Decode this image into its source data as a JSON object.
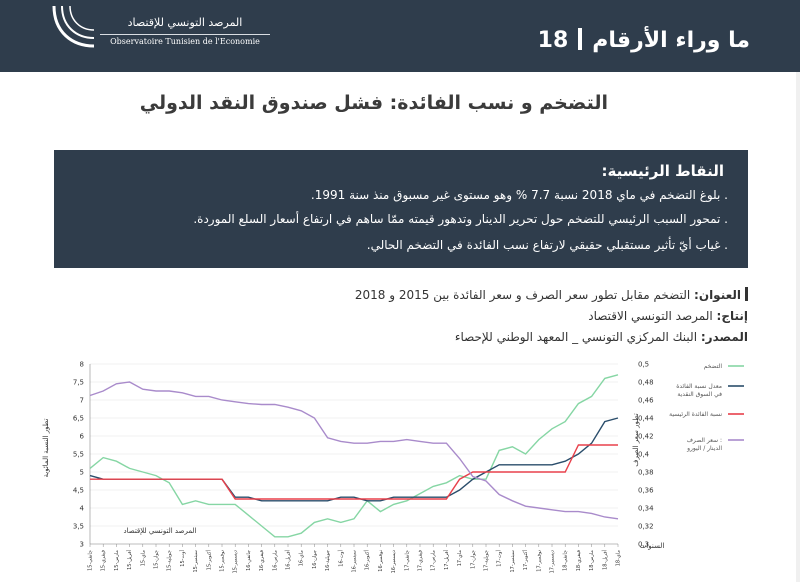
{
  "header": {
    "logo_ar": "المرصد التونسي للإقتصاد",
    "logo_fr": "Observatoire Tunisien de l'Economie",
    "title": "ما وراء الأرقام",
    "number": "18"
  },
  "main_title": "التضخم و نسب الفائدة: فشل صندوق النقد الدولي",
  "key_points": {
    "title": "النقاط الرئيسية:",
    "items": [
      ". بلوغ التضخم في ماي 2018 نسبة 7.7 % وهو مستوى غير مسبوق منذ سنة 1991.",
      ". تمحور السبب الرئيسي للتضخم حول تحرير الدينار وتدهور قيمته ممّا ساهم في ارتفاع أسعار السلع الموردة.",
      ". غياب أيّ تأثير مستقبلي حقيقي لارتفاع نسب الفائدة في التضخم الحالي."
    ]
  },
  "meta": {
    "title_label": "العنوان:",
    "title_value": "التضخم مقابل تطور سعر الصرف و سعر الفائدة بين 2015 و 2018",
    "production_label": "إنتاج:",
    "production_value": "المرصد التونسي الاقتصاد",
    "source_label": "المصدر:",
    "source_value": "البنك المركزي التونسي _ المعهد الوطني للإحصاء"
  },
  "colors": {
    "header_bg": "#2f3d4c",
    "inflation": "#86d6a4",
    "money_market_rate": "#2a4d6b",
    "key_rate": "#e8404b",
    "exchange_rate": "#a98bcb"
  },
  "chart_data": {
    "type": "line",
    "ylabel": "تطور النسبة المائوية",
    "ylabel_right": "تطور سعر الصرف",
    "xlabel": "السنوات",
    "watermark": "المرصد التونسي للإقتصاد",
    "ylim": [
      3,
      8
    ],
    "yticks": [
      "3",
      "3,5",
      "4",
      "4,5",
      "5",
      "5,5",
      "6",
      "6,5",
      "7",
      "7,5",
      "8"
    ],
    "y2lim": [
      0.3,
      0.5
    ],
    "y2ticks": [
      "0,3",
      "0,32",
      "0,34",
      "0,36",
      "0,38",
      "0,4",
      "0,42",
      "0,44",
      "0,46",
      "0,48",
      "0,5"
    ],
    "x": [
      "جانفي-15",
      "فيفري-15",
      "مارس-15",
      "أفريل-15",
      "ماي-15",
      "جوان-15",
      "جويلية-15",
      "أوت-15",
      "سبتمبر-15",
      "أكتوبر-15",
      "نوفمبر-15",
      "ديسمبر-15",
      "جانفي-16",
      "فيفري-16",
      "مارس-16",
      "أفريل-16",
      "ماي-16",
      "جوان-16",
      "جويلية-16",
      "أوت-16",
      "سبتمبر-16",
      "أكتوبر-16",
      "نوفمبر-16",
      "ديسمبر-16",
      "جانفي-17",
      "فيفري-17",
      "مارس-17",
      "أفريل-17",
      "ماي-17",
      "جوان-17",
      "جويلية-17",
      "أوت-17",
      "سبتمبر-17",
      "أكتوبر-17",
      "نوفمبر-17",
      "ديسمبر-17",
      "جانفي-18",
      "فيفري-18",
      "مارس-18",
      "أفريل-18",
      "ماي-18"
    ],
    "series": [
      {
        "name": "التضخم",
        "axis": "left",
        "color": "#86d6a4",
        "values": [
          5.1,
          5.4,
          5.3,
          5.1,
          5.0,
          4.9,
          4.7,
          4.1,
          4.2,
          4.1,
          4.1,
          4.1,
          3.8,
          3.5,
          3.2,
          3.2,
          3.3,
          3.6,
          3.7,
          3.6,
          3.7,
          4.2,
          3.9,
          4.1,
          4.2,
          4.4,
          4.6,
          4.7,
          4.9,
          4.8,
          4.8,
          5.6,
          5.7,
          5.5,
          5.9,
          6.2,
          6.4,
          6.9,
          7.1,
          7.6,
          7.7
        ]
      },
      {
        "name": "معدل نسبة الفائدة في السوق النقدية",
        "axis": "left",
        "color": "#2a4d6b",
        "values": [
          4.9,
          4.8,
          4.8,
          4.8,
          4.8,
          4.8,
          4.8,
          4.8,
          4.8,
          4.8,
          4.8,
          4.3,
          4.3,
          4.2,
          4.2,
          4.2,
          4.2,
          4.2,
          4.2,
          4.3,
          4.3,
          4.2,
          4.2,
          4.3,
          4.3,
          4.3,
          4.3,
          4.3,
          4.5,
          4.8,
          5.0,
          5.2,
          5.2,
          5.2,
          5.2,
          5.2,
          5.3,
          5.5,
          5.8,
          6.4,
          6.5
        ]
      },
      {
        "name": "نسبة الفائدة الرئيسية",
        "axis": "left",
        "color": "#e8404b",
        "values": [
          4.8,
          4.8,
          4.8,
          4.8,
          4.8,
          4.8,
          4.8,
          4.8,
          4.8,
          4.8,
          4.8,
          4.25,
          4.25,
          4.25,
          4.25,
          4.25,
          4.25,
          4.25,
          4.25,
          4.25,
          4.25,
          4.25,
          4.25,
          4.25,
          4.25,
          4.25,
          4.25,
          4.25,
          4.8,
          5.0,
          5.0,
          5.0,
          5.0,
          5.0,
          5.0,
          5.0,
          5.0,
          5.75,
          5.75,
          5.75,
          5.75
        ]
      },
      {
        "name": "سعر الصرف : الدينار / اليورو",
        "axis": "right",
        "color": "#a98bcb",
        "values": [
          0.465,
          0.47,
          0.478,
          0.48,
          0.472,
          0.47,
          0.47,
          0.468,
          0.464,
          0.464,
          0.46,
          0.458,
          0.456,
          0.455,
          0.455,
          0.452,
          0.448,
          0.44,
          0.418,
          0.414,
          0.412,
          0.412,
          0.414,
          0.414,
          0.416,
          0.414,
          0.412,
          0.412,
          0.395,
          0.375,
          0.37,
          0.355,
          0.348,
          0.342,
          0.34,
          0.338,
          0.336,
          0.336,
          0.334,
          0.33,
          0.328
        ]
      }
    ]
  }
}
